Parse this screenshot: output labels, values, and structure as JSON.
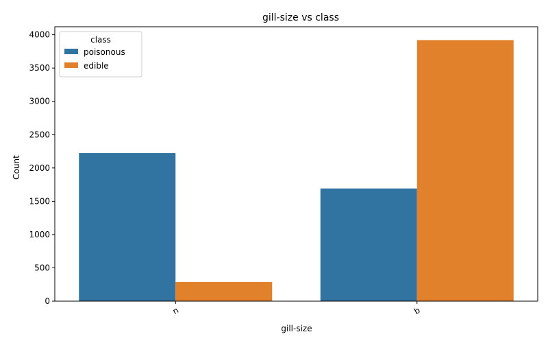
{
  "chart_data": {
    "type": "bar",
    "title": "gill-size vs class",
    "xlabel": "gill-size",
    "ylabel": "Count",
    "categories": [
      "n",
      "b"
    ],
    "series": [
      {
        "name": "poisonous",
        "values": [
          2224,
          1692
        ],
        "color": "#3274a1"
      },
      {
        "name": "edible",
        "values": [
          288,
          3920
        ],
        "color": "#e1812c"
      }
    ],
    "ylim": [
      0,
      4120
    ],
    "yticks": [
      0,
      500,
      1000,
      1500,
      2000,
      2500,
      3000,
      3500,
      4000
    ],
    "legend": {
      "title": "class",
      "placement": "top-left"
    },
    "grid": false
  }
}
